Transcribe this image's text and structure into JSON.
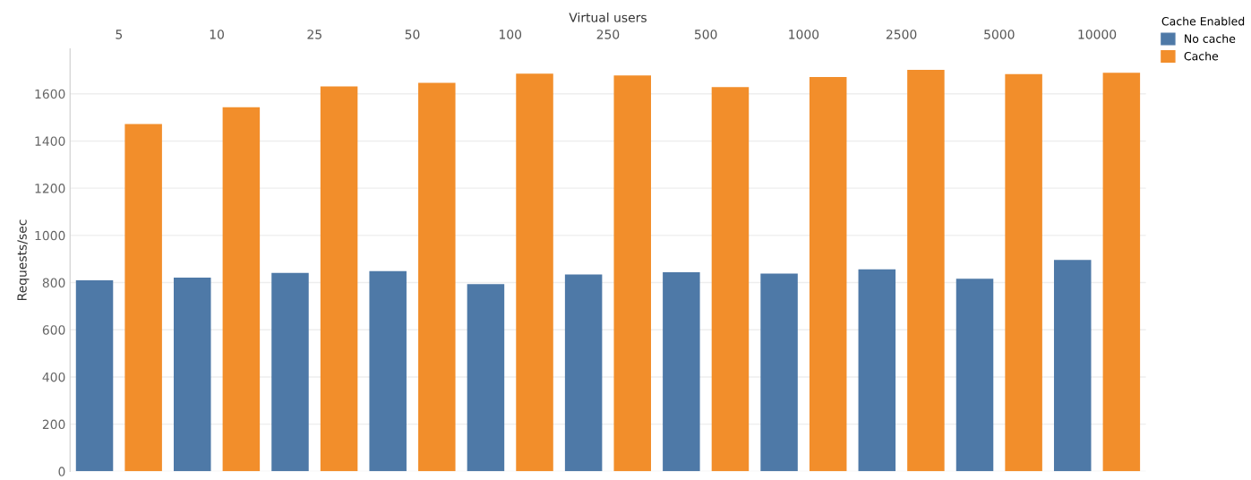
{
  "chart_data": {
    "type": "bar",
    "xlabel": "Virtual users",
    "ylabel": "Requests/sec",
    "legend_title": "Cache Enabled",
    "categories": [
      "5",
      "10",
      "25",
      "50",
      "100",
      "250",
      "500",
      "1000",
      "2500",
      "5000",
      "10000"
    ],
    "series": [
      {
        "name": "No cache",
        "color": "#4e79a7",
        "values": [
          810,
          821,
          841,
          849,
          794,
          834,
          844,
          838,
          856,
          816,
          896
        ]
      },
      {
        "name": "Cache",
        "color": "#f28e2b",
        "values": [
          1472,
          1543,
          1631,
          1646,
          1685,
          1678,
          1628,
          1671,
          1701,
          1683,
          1689
        ]
      }
    ],
    "ylim": [
      0,
      1790
    ],
    "yticks": [
      0,
      200,
      400,
      600,
      800,
      1000,
      1200,
      1400,
      1600
    ],
    "grid": "y",
    "legend": "top right"
  }
}
